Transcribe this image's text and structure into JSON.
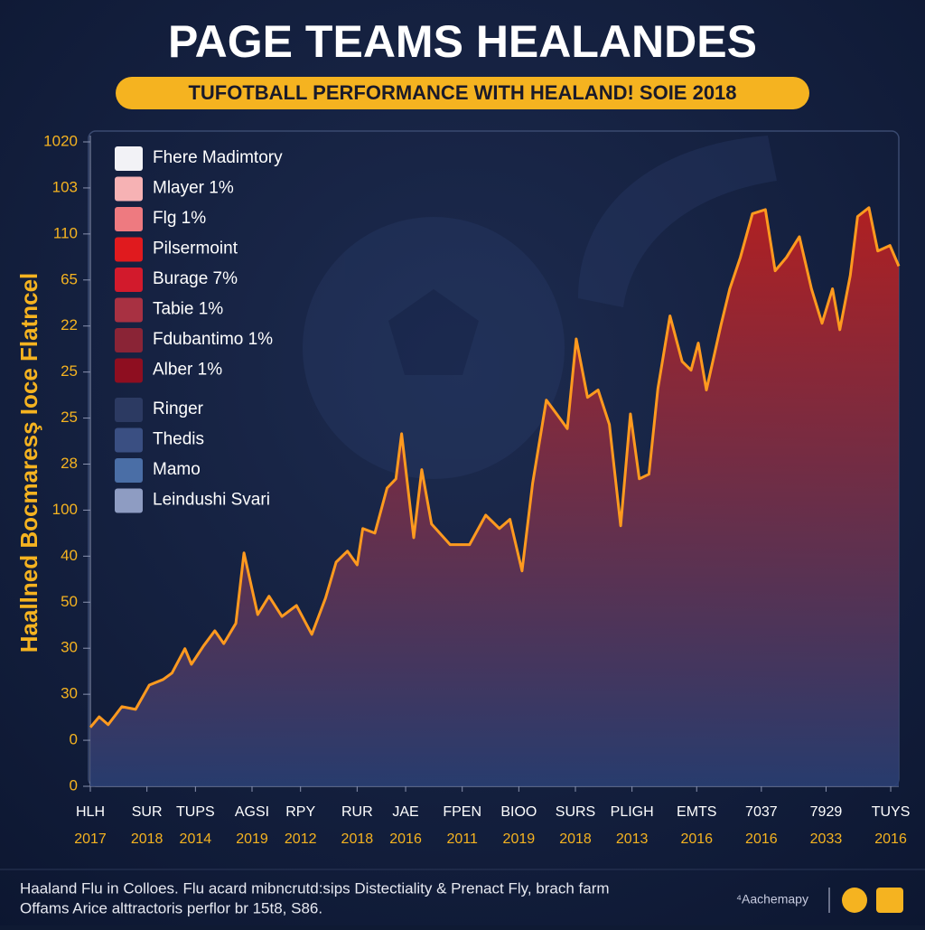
{
  "chart_data": {
    "type": "area",
    "title": "PAGE TEAMS HEALANDES",
    "subtitle": "TUFOTBALL PERFORMANCE WITH HEALAND! SOIE 2018",
    "y_label": "Haallned Bocmaresş Ioce Flatncel",
    "line_color": "#ff9a1f",
    "fill_top": "#c0201f",
    "fill_bottom": "#2a3f73",
    "xlim": [
      0,
      100
    ],
    "ylim": [
      0,
      14
    ],
    "yticks": [
      {
        "value": 0,
        "label": "0"
      },
      {
        "value": 1,
        "label": "0"
      },
      {
        "value": 2,
        "label": "30"
      },
      {
        "value": 3,
        "label": "30"
      },
      {
        "value": 4,
        "label": "50"
      },
      {
        "value": 5,
        "label": "40"
      },
      {
        "value": 6,
        "label": "100"
      },
      {
        "value": 7,
        "label": "28"
      },
      {
        "value": 8,
        "label": "25"
      },
      {
        "value": 9,
        "label": "25"
      },
      {
        "value": 10,
        "label": "22"
      },
      {
        "value": 11,
        "label": "65"
      },
      {
        "value": 12,
        "label": "110"
      },
      {
        "value": 13,
        "label": "103"
      },
      {
        "value": 14,
        "label": "1020"
      }
    ],
    "xticks": [
      {
        "value": 0,
        "label": "HLH"
      },
      {
        "value": 7,
        "label": "SUR"
      },
      {
        "value": 13,
        "label": "TUPS"
      },
      {
        "value": 20,
        "label": "AGSI"
      },
      {
        "value": 26,
        "label": "RPY"
      },
      {
        "value": 33,
        "label": "RUR"
      },
      {
        "value": 39,
        "label": "JAE"
      },
      {
        "value": 46,
        "label": "FPEN"
      },
      {
        "value": 53,
        "label": "BIOO"
      },
      {
        "value": 60,
        "label": "SURS"
      },
      {
        "value": 67,
        "label": "PLIGH"
      },
      {
        "value": 75,
        "label": "EMTS"
      },
      {
        "value": 83,
        "label": "7037"
      },
      {
        "value": 91,
        "label": "7929"
      },
      {
        "value": 99,
        "label": "TUYS"
      }
    ],
    "xtick_years": [
      "2017",
      "2018",
      "2014",
      "2019",
      "2012",
      "2018",
      "2016",
      "2011",
      "2019",
      "2018",
      "2013",
      "2016",
      "2016",
      "2033",
      "2016"
    ],
    "x": [
      0,
      1.1,
      2.2,
      3.9,
      5.6,
      7.3,
      9.0,
      10.1,
      11.7,
      12.5,
      14.0,
      15.4,
      16.5,
      18.0,
      19.0,
      20.7,
      22.1,
      23.7,
      25.5,
      27.4,
      29.1,
      30.4,
      31.8,
      33.0,
      33.7,
      35.2,
      36.7,
      37.8,
      38.5,
      40.0,
      41.0,
      42.2,
      44.5,
      46.9,
      48.9,
      50.6,
      51.9,
      53.4,
      54.7,
      56.4,
      57.8,
      59.0,
      60.1,
      61.5,
      62.8,
      64.2,
      65.6,
      66.8,
      67.9,
      69.1,
      70.2,
      71.7,
      73.2,
      74.3,
      75.2,
      76.2,
      78.0,
      79.1,
      80.4,
      81.9,
      83.5,
      84.7,
      86.1,
      87.7,
      89.2,
      90.5,
      91.8,
      92.7,
      94.0,
      94.9,
      96.3,
      97.4,
      98.9,
      100
    ],
    "values": [
      1.28,
      1.51,
      1.34,
      1.73,
      1.67,
      2.2,
      2.32,
      2.46,
      2.99,
      2.65,
      3.05,
      3.38,
      3.1,
      3.54,
      5.07,
      3.73,
      4.13,
      3.69,
      3.93,
      3.3,
      4.09,
      4.87,
      5.11,
      4.81,
      5.6,
      5.5,
      6.48,
      6.68,
      7.66,
      5.4,
      6.88,
      5.7,
      5.25,
      5.25,
      5.89,
      5.6,
      5.8,
      4.68,
      6.58,
      8.39,
      8.06,
      7.77,
      9.72,
      8.45,
      8.61,
      7.86,
      5.66,
      8.09,
      6.68,
      6.78,
      8.64,
      10.22,
      9.23,
      9.04,
      9.63,
      8.61,
      10.02,
      10.81,
      11.49,
      12.44,
      12.53,
      11.2,
      11.49,
      11.94,
      10.81,
      10.06,
      10.81,
      9.92,
      11.1,
      12.38,
      12.57,
      11.63,
      11.75,
      11.3
    ],
    "legend": [
      {
        "label": "Fhere Madimtory",
        "color": "#f2f2f6"
      },
      {
        "label": "Mlayer 1%",
        "color": "#f6b2b4"
      },
      {
        "label": "Flg 1%",
        "color": "#ee7a80"
      },
      {
        "label": "Pilsermoint",
        "color": "#e01a1e"
      },
      {
        "label": "Burage 7%",
        "color": "#d21a2c"
      },
      {
        "label": "Tabie 1%",
        "color": "#a83142"
      },
      {
        "label": "Fdubantimo 1%",
        "color": "#8a2436"
      },
      {
        "label": "Alber 1%",
        "color": "#8e0e20"
      },
      {
        "label": "Ringer",
        "color": "#2c3a62"
      },
      {
        "label": "Thedis",
        "color": "#3a4f82"
      },
      {
        "label": "Mamo",
        "color": "#4a6ea6"
      },
      {
        "label": "Leindushi Svari",
        "color": "#8e9cc2"
      }
    ]
  },
  "footer": {
    "lines": [
      "Haaland Flu in Colloes. Flu acard mibncrutd:sips Distectiality & Prenact Fly, brach farm",
      "Offams Arice alttractoris perflor br 15t8, S86."
    ],
    "brand": "⁴Aachemapy"
  }
}
